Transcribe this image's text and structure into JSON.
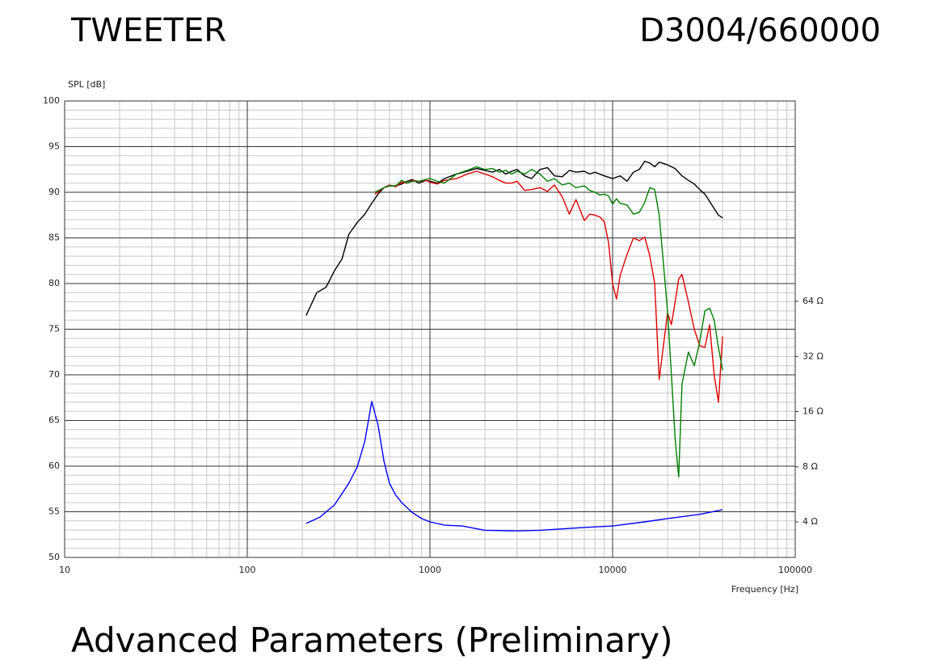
{
  "header": {
    "left": "TWEETER",
    "right": "D3004/660000"
  },
  "footer": {
    "heading": "Advanced Parameters (Preliminary)"
  },
  "chart_data": {
    "type": "line",
    "ylabel": "SPL [dB]",
    "xlabel": "Frequency [Hz]",
    "xscale": "log",
    "y2scale": "log",
    "grid": true,
    "xlim": [
      10,
      100000
    ],
    "xticks": [
      10,
      100,
      1000,
      10000,
      100000
    ],
    "xminor": [
      20,
      30,
      40,
      50,
      60,
      70,
      80,
      90,
      200,
      300,
      400,
      500,
      600,
      700,
      800,
      900,
      2000,
      3000,
      4000,
      5000,
      6000,
      7000,
      8000,
      9000,
      20000,
      30000,
      40000,
      50000,
      60000,
      70000,
      80000,
      90000
    ],
    "ylim": [
      50,
      100
    ],
    "yticks": [
      50,
      55,
      60,
      65,
      70,
      75,
      80,
      85,
      90,
      95,
      100
    ],
    "yminor": [
      51,
      52,
      53,
      54,
      56,
      57,
      58,
      59,
      61,
      62,
      63,
      64,
      66,
      67,
      68,
      69,
      71,
      72,
      73,
      74,
      76,
      77,
      78,
      79,
      81,
      82,
      83,
      84,
      86,
      87,
      88,
      89,
      91,
      92,
      93,
      94,
      96,
      97,
      98,
      99
    ],
    "y2lim": [
      2.56,
      794
    ],
    "y2ticks": [
      {
        "value": 4,
        "label": "4 Ω"
      },
      {
        "value": 8,
        "label": "8 Ω"
      },
      {
        "value": 16,
        "label": "16 Ω"
      },
      {
        "value": 32,
        "label": "32 Ω"
      },
      {
        "value": 64,
        "label": "64 Ω"
      }
    ],
    "series": [
      {
        "color": "#000000",
        "x": [
          210,
          240,
          270,
          300,
          330,
          360,
          400,
          440,
          480,
          520,
          560,
          600,
          650,
          700,
          750,
          800,
          870,
          950,
          1000,
          1100,
          1200,
          1400,
          1600,
          1800,
          2000,
          2200,
          2400,
          2600,
          2800,
          3000,
          3300,
          3600,
          4000,
          4400,
          4800,
          5300,
          5800,
          6300,
          7000,
          7500,
          8000,
          9000,
          10000,
          11000,
          12000,
          13000,
          14000,
          15000,
          16000,
          17000,
          18000,
          20000,
          22000,
          24000,
          26000,
          28000,
          30000,
          32000,
          34000,
          36000,
          38000,
          40000
        ],
        "values": [
          76.5,
          79,
          79.6,
          81.4,
          82.7,
          85.4,
          86.7,
          87.6,
          88.8,
          89.8,
          90.5,
          90.7,
          90.7,
          90.9,
          91.2,
          91.4,
          91,
          91.3,
          91.2,
          91,
          91.5,
          92,
          92.3,
          92.6,
          92.4,
          92.2,
          92.5,
          92,
          92.3,
          92.5,
          91.8,
          91.5,
          92.5,
          92.7,
          91.8,
          91.7,
          92.4,
          92.2,
          92.3,
          92,
          92.2,
          91.8,
          91.5,
          91.8,
          91.2,
          92.2,
          92.5,
          93.4,
          93.2,
          92.8,
          93.3,
          93,
          92.6,
          91.8,
          91.3,
          90.9,
          90.3,
          89.8,
          89,
          88.2,
          87.5,
          87.2
        ]
      },
      {
        "color": "#e00000",
        "x": [
          500,
          560,
          600,
          650,
          700,
          750,
          800,
          870,
          950,
          1000,
          1100,
          1200,
          1400,
          1600,
          1800,
          2000,
          2200,
          2400,
          2600,
          2800,
          3000,
          3300,
          3600,
          4000,
          4400,
          4800,
          5300,
          5800,
          6300,
          7000,
          7500,
          8000,
          8500,
          9000,
          9500,
          10000,
          10500,
          11000,
          12000,
          13000,
          14000,
          15000,
          16000,
          17000,
          18000,
          20000,
          21000,
          22000,
          23000,
          24000,
          26000,
          28000,
          30000,
          32000,
          34000,
          36000,
          38000,
          40000
        ],
        "values": [
          89.8,
          90.5,
          90.8,
          90.6,
          91.1,
          91,
          91.3,
          91.2,
          91.3,
          91.1,
          90.9,
          91.3,
          91.5,
          92,
          92.3,
          92,
          91.7,
          91.3,
          91,
          91,
          91.2,
          90.2,
          90.3,
          90.5,
          90.1,
          90.8,
          89.5,
          87.6,
          89.2,
          86.9,
          87.6,
          87.5,
          87.3,
          86.8,
          84.5,
          80,
          78.3,
          80.9,
          83.2,
          85,
          84.7,
          85.1,
          83,
          80,
          69.5,
          76.8,
          75.5,
          78,
          80.5,
          81,
          78,
          75,
          73.2,
          73,
          75.5,
          70,
          67,
          74.2
        ]
      },
      {
        "color": "#008000",
        "x": [
          500,
          560,
          600,
          650,
          700,
          750,
          800,
          870,
          950,
          1000,
          1100,
          1200,
          1400,
          1600,
          1800,
          2000,
          2200,
          2400,
          2600,
          2800,
          3000,
          3300,
          3600,
          4000,
          4400,
          4800,
          5300,
          5800,
          6300,
          7000,
          7500,
          8000,
          8500,
          9000,
          9500,
          10000,
          10500,
          11000,
          12000,
          13000,
          14000,
          15000,
          16000,
          17000,
          18000,
          20000,
          21000,
          22000,
          23000,
          24000,
          26000,
          28000,
          30000,
          32000,
          34000,
          36000,
          38000,
          40000
        ],
        "values": [
          90,
          90.5,
          90.7,
          90.7,
          91.3,
          91,
          91.2,
          91.2,
          91.4,
          91.5,
          91.2,
          91,
          92,
          92.4,
          92.8,
          92.5,
          92.6,
          92.2,
          92.4,
          92,
          92.3,
          92,
          92.5,
          92,
          91.2,
          91.5,
          90.8,
          91,
          90.5,
          90.7,
          90.2,
          90,
          89.7,
          89.8,
          89.6,
          88.7,
          89.3,
          88.8,
          88.6,
          87.6,
          87.8,
          88.9,
          90.5,
          90.3,
          87.5,
          77,
          70,
          63,
          58.8,
          69,
          72.5,
          71,
          73.6,
          77,
          77.3,
          76,
          73,
          70.5
        ]
      },
      {
        "color": "#0000ff",
        "axis": "y2",
        "x": [
          210,
          250,
          300,
          360,
          400,
          440,
          480,
          520,
          560,
          600,
          650,
          700,
          800,
          900,
          1000,
          1200,
          1500,
          2000,
          3000,
          4000,
          5000,
          7000,
          10000,
          15000,
          20000,
          30000,
          40000
        ],
        "values": [
          3.92,
          4.25,
          4.95,
          6.5,
          8,
          11,
          18.2,
          13.5,
          8.6,
          6.5,
          5.6,
          5.1,
          4.5,
          4.17,
          4,
          3.84,
          3.8,
          3.6,
          3.57,
          3.6,
          3.65,
          3.73,
          3.8,
          4,
          4.17,
          4.4,
          4.66
        ]
      }
    ]
  }
}
